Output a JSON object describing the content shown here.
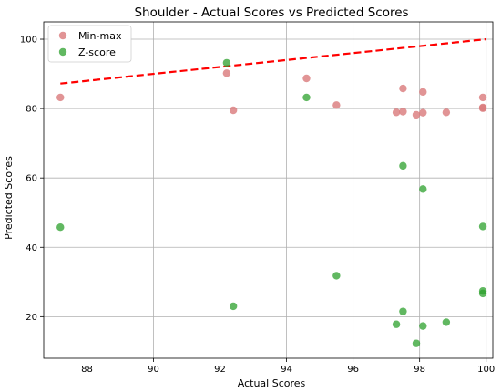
{
  "chart_data": {
    "type": "scatter",
    "title": "Shoulder - Actual Scores vs Predicted Scores",
    "xlabel": "Actual Scores",
    "ylabel": "Predicted Scores",
    "xlim": [
      86.7,
      100.2
    ],
    "ylim": [
      8,
      105
    ],
    "xticks": [
      88,
      90,
      92,
      94,
      96,
      98,
      100
    ],
    "yticks": [
      20,
      40,
      60,
      80,
      100
    ],
    "grid": true,
    "legend_position": "top-left",
    "x": [
      87.2,
      92.2,
      92.4,
      94.6,
      95.5,
      97.3,
      97.5,
      97.5,
      97.9,
      98.1,
      98.1,
      98.8,
      99.9,
      99.9,
      99.9
    ],
    "series": [
      {
        "name": "Min-max",
        "color": "#d9797a",
        "values": [
          83.2,
          90.2,
          79.5,
          88.7,
          81.0,
          78.9,
          85.8,
          79.1,
          78.2,
          84.8,
          78.8,
          78.9,
          80.3,
          80.1,
          83.2
        ]
      },
      {
        "name": "Z-score",
        "color": "#2ca02c",
        "values": [
          45.8,
          93.2,
          23.0,
          83.2,
          31.8,
          17.8,
          63.5,
          21.5,
          12.3,
          56.8,
          17.3,
          18.4,
          27.4,
          26.7,
          46.0
        ]
      }
    ],
    "reference_line": {
      "points": [
        [
          87.2,
          87.2
        ],
        [
          100.0,
          100.0
        ]
      ],
      "color": "#ff0000",
      "style": "dashed"
    }
  }
}
